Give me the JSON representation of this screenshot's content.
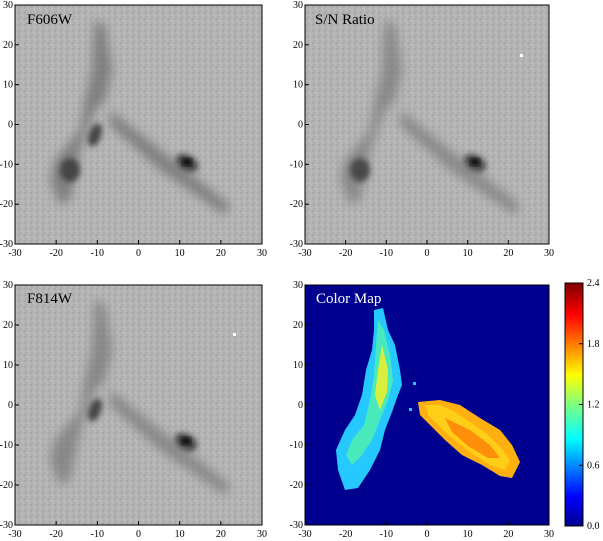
{
  "panels": [
    {
      "title": "F606W",
      "title_color": "#000000",
      "style": "gray"
    },
    {
      "title": "S/N Ratio",
      "title_color": "#000000",
      "style": "gray"
    },
    {
      "title": "F814W",
      "title_color": "#000000",
      "style": "gray"
    },
    {
      "title": "Color Map",
      "title_color": "#ffffff",
      "style": "color"
    }
  ],
  "axes": {
    "x_ticks": [
      "-30",
      "-20",
      "-10",
      "0",
      "10",
      "20",
      "30"
    ],
    "y_ticks": [
      "30",
      "20",
      "10",
      "0",
      "-10",
      "-20",
      "-30"
    ],
    "range": [
      -30,
      30
    ]
  },
  "colorbar": {
    "ticks": [
      "2.4",
      "1.8",
      "1.2",
      "0.6",
      "0.0"
    ],
    "range": [
      0.0,
      2.4
    ]
  },
  "colors": {
    "map_background": "#00008f",
    "gray_background": "#b4b4b4"
  }
}
